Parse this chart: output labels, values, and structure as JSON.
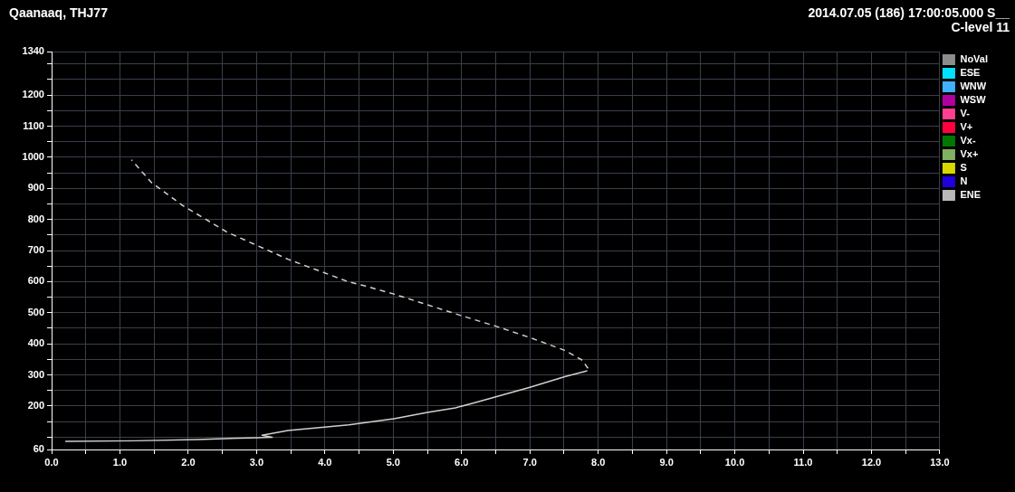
{
  "chart_data": {
    "type": "line",
    "title": "Qaanaaq, THJ77",
    "annotations": [
      "2014.07.05 (186) 17:00:05.000 S__",
      "C-level 11"
    ],
    "xlim": [
      0,
      13
    ],
    "xticks": [
      {
        "value": 0,
        "label": "0.0"
      },
      {
        "value": 0.5,
        "label": null
      },
      {
        "value": 1,
        "label": "1.0"
      },
      {
        "value": 1.5,
        "label": null
      },
      {
        "value": 2,
        "label": "2.0"
      },
      {
        "value": 2.5,
        "label": null
      },
      {
        "value": 3,
        "label": "3.0"
      },
      {
        "value": 3.5,
        "label": null
      },
      {
        "value": 4,
        "label": "4.0"
      },
      {
        "value": 4.5,
        "label": null
      },
      {
        "value": 5,
        "label": "5.0"
      },
      {
        "value": 5.5,
        "label": null
      },
      {
        "value": 6,
        "label": "6.0"
      },
      {
        "value": 6.5,
        "label": null
      },
      {
        "value": 7,
        "label": "7.0"
      },
      {
        "value": 7.5,
        "label": null
      },
      {
        "value": 8,
        "label": "8.0"
      },
      {
        "value": 8.5,
        "label": null
      },
      {
        "value": 9,
        "label": "9.0"
      },
      {
        "value": 9.5,
        "label": null
      },
      {
        "value": 10,
        "label": "10.0"
      },
      {
        "value": 10.5,
        "label": null
      },
      {
        "value": 11,
        "label": "11.0"
      },
      {
        "value": 11.5,
        "label": null
      },
      {
        "value": 12,
        "label": "12.0"
      },
      {
        "value": 12.5,
        "label": null
      },
      {
        "value": 13,
        "label": "13.0"
      }
    ],
    "ylim": [
      60,
      1340
    ],
    "yticks": [
      60,
      {
        "value": 100,
        "label": null
      },
      {
        "value": 150,
        "label": null
      },
      200,
      {
        "value": 250,
        "label": null
      },
      300,
      {
        "value": 350,
        "label": null
      },
      400,
      {
        "value": 450,
        "label": null
      },
      500,
      {
        "value": 550,
        "label": null
      },
      600,
      {
        "value": 650,
        "label": null
      },
      700,
      {
        "value": 750,
        "label": null
      },
      800,
      {
        "value": 850,
        "label": null
      },
      900,
      {
        "value": 950,
        "label": null
      },
      1000,
      {
        "value": 1050,
        "label": null
      },
      1100,
      {
        "value": 1150,
        "label": null
      },
      1200,
      {
        "value": 1250,
        "label": null
      },
      {
        "value": 1300,
        "label": null
      },
      1340
    ],
    "grid": true,
    "legend": "top right",
    "marker": "none",
    "series": [
      {
        "color": "#d0d0d0",
        "line_style": "solid",
        "x": [
          0.2,
          1.24,
          2.13,
          3.01,
          3.23,
          3.08,
          3.46,
          4.35,
          5.01,
          5.5,
          5.91,
          6.17,
          7.0,
          7.51,
          7.84
        ],
        "values": [
          86,
          88,
          92,
          98,
          99,
          106,
          121,
          139,
          159,
          179,
          194,
          209,
          260,
          294,
          313
        ]
      },
      {
        "color": "#d0d0d0",
        "line_style": "dashed",
        "x": [
          7.85,
          7.77,
          7.51,
          7.0,
          6.51,
          5.99,
          5.01,
          4.57,
          4.35,
          3.46,
          2.57,
          1.91,
          1.46,
          1.17
        ],
        "values": [
          321,
          347,
          379,
          420,
          456,
          491,
          560,
          587,
          599,
          672,
          759,
          846,
          919,
          992
        ]
      },
      {
        "name": "NoVal",
        "color": "#8c8c8c"
      },
      {
        "name": "ESE",
        "color": "#00e0ff"
      },
      {
        "name": "WNW",
        "color": "#40b0ff"
      },
      {
        "name": "WSW",
        "color": "#b000a0"
      },
      {
        "name": "V-",
        "color": "#ff4090"
      },
      {
        "name": "V+",
        "color": "#ff0040"
      },
      {
        "name": "Vx-",
        "color": "#007800"
      },
      {
        "name": "Vx+",
        "color": "#80b060"
      },
      {
        "name": "S",
        "color": "#d8d800"
      },
      {
        "name": "N",
        "color": "#2000e0"
      },
      {
        "name": "ENE",
        "color": "#b8b8b8"
      }
    ]
  }
}
